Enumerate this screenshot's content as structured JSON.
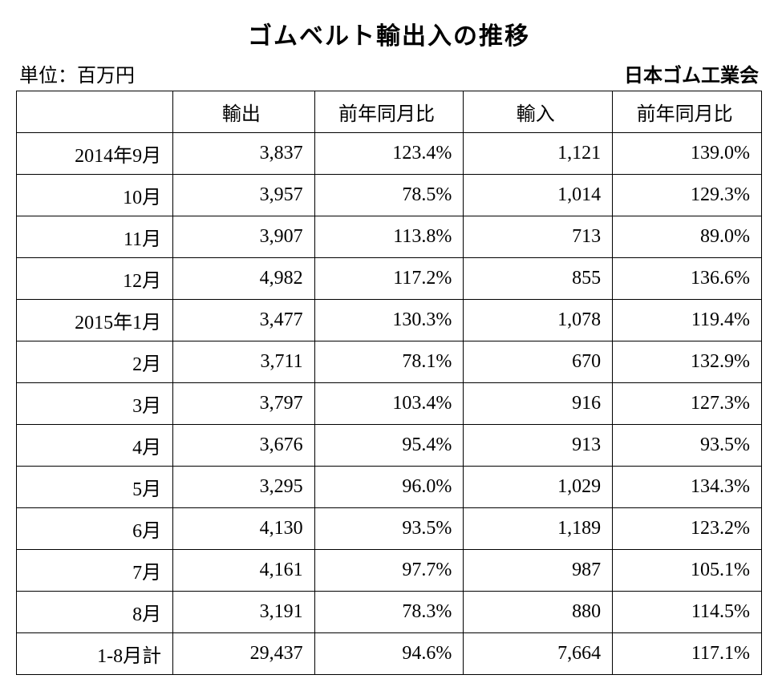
{
  "title": "ゴムベルト輸出入の推移",
  "unit_label": "単位：百万円",
  "source_label": "日本ゴム工業会",
  "table": {
    "columns": [
      "",
      "輸出",
      "前年同月比",
      "輸入",
      "前年同月比"
    ],
    "rows": [
      [
        "2014年9月",
        "3,837",
        "123.4%",
        "1,121",
        "139.0%"
      ],
      [
        "10月",
        "3,957",
        "78.5%",
        "1,014",
        "129.3%"
      ],
      [
        "11月",
        "3,907",
        "113.8%",
        "713",
        "89.0%"
      ],
      [
        "12月",
        "4,982",
        "117.2%",
        "855",
        "136.6%"
      ],
      [
        "2015年1月",
        "3,477",
        "130.3%",
        "1,078",
        "119.4%"
      ],
      [
        "2月",
        "3,711",
        "78.1%",
        "670",
        "132.9%"
      ],
      [
        "3月",
        "3,797",
        "103.4%",
        "916",
        "127.3%"
      ],
      [
        "4月",
        "3,676",
        "95.4%",
        "913",
        "93.5%"
      ],
      [
        "5月",
        "3,295",
        "96.0%",
        "1,029",
        "134.3%"
      ],
      [
        "6月",
        "4,130",
        "93.5%",
        "1,189",
        "123.2%"
      ],
      [
        "7月",
        "4,161",
        "97.7%",
        "987",
        "105.1%"
      ],
      [
        "8月",
        "3,191",
        "78.3%",
        "880",
        "114.5%"
      ],
      [
        "1-8月計",
        "29,437",
        "94.6%",
        "7,664",
        "117.1%"
      ]
    ],
    "border_color": "#000000",
    "background_color": "#ffffff",
    "header_fontsize": 24,
    "cell_fontsize": 24,
    "title_fontsize": 30
  }
}
